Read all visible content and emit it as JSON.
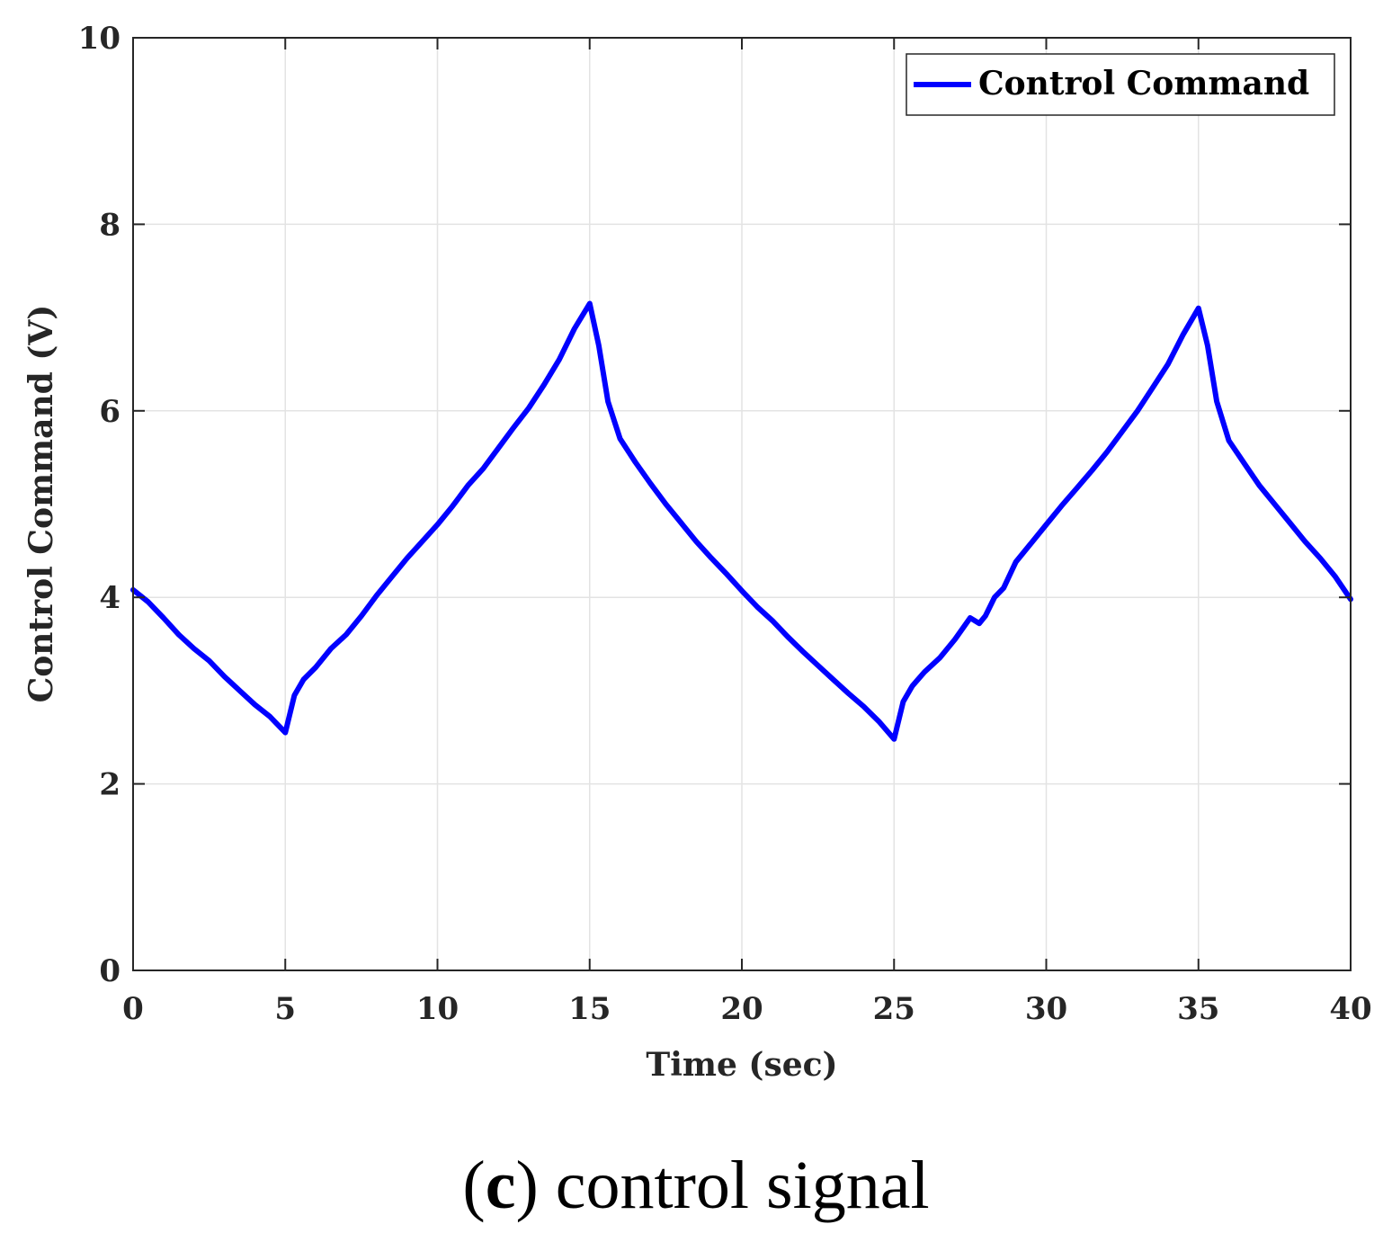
{
  "chart_data": {
    "type": "line",
    "xlabel": "Time (sec)",
    "ylabel": "Control Command (V)",
    "xlim": [
      0,
      40
    ],
    "ylim": [
      0,
      10
    ],
    "xticks": [
      "0",
      "5",
      "10",
      "15",
      "20",
      "25",
      "30",
      "35",
      "40"
    ],
    "yticks": [
      "0",
      "2",
      "4",
      "6",
      "8",
      "10"
    ],
    "grid": true,
    "legend_position": "top-right",
    "series": [
      {
        "name": "Control Command",
        "color": "#0000ff",
        "points": [
          [
            0,
            4.08
          ],
          [
            0.5,
            3.95
          ],
          [
            1,
            3.78
          ],
          [
            1.5,
            3.6
          ],
          [
            2,
            3.45
          ],
          [
            2.5,
            3.32
          ],
          [
            3,
            3.15
          ],
          [
            3.5,
            3.0
          ],
          [
            4,
            2.85
          ],
          [
            4.5,
            2.72
          ],
          [
            5,
            2.55
          ],
          [
            5.3,
            2.95
          ],
          [
            5.6,
            3.12
          ],
          [
            6,
            3.25
          ],
          [
            6.5,
            3.45
          ],
          [
            7,
            3.6
          ],
          [
            7.5,
            3.8
          ],
          [
            8,
            4.02
          ],
          [
            8.5,
            4.22
          ],
          [
            9,
            4.42
          ],
          [
            9.5,
            4.6
          ],
          [
            10,
            4.78
          ],
          [
            10.5,
            4.98
          ],
          [
            11,
            5.2
          ],
          [
            11.5,
            5.38
          ],
          [
            12,
            5.6
          ],
          [
            12.5,
            5.82
          ],
          [
            13,
            6.03
          ],
          [
            13.5,
            6.28
          ],
          [
            14,
            6.55
          ],
          [
            14.5,
            6.88
          ],
          [
            15,
            7.15
          ],
          [
            15.3,
            6.7
          ],
          [
            15.6,
            6.1
          ],
          [
            16,
            5.7
          ],
          [
            16.5,
            5.45
          ],
          [
            17,
            5.22
          ],
          [
            17.5,
            5.0
          ],
          [
            18,
            4.8
          ],
          [
            18.5,
            4.6
          ],
          [
            19,
            4.42
          ],
          [
            19.5,
            4.25
          ],
          [
            20,
            4.07
          ],
          [
            20.5,
            3.9
          ],
          [
            21,
            3.75
          ],
          [
            21.5,
            3.58
          ],
          [
            22,
            3.42
          ],
          [
            22.5,
            3.27
          ],
          [
            23,
            3.12
          ],
          [
            23.5,
            2.97
          ],
          [
            24,
            2.83
          ],
          [
            24.5,
            2.67
          ],
          [
            25,
            2.48
          ],
          [
            25.3,
            2.88
          ],
          [
            25.6,
            3.05
          ],
          [
            26,
            3.2
          ],
          [
            26.5,
            3.35
          ],
          [
            27,
            3.55
          ],
          [
            27.5,
            3.78
          ],
          [
            27.8,
            3.72
          ],
          [
            28,
            3.8
          ],
          [
            28.3,
            4.0
          ],
          [
            28.6,
            4.1
          ],
          [
            29,
            4.38
          ],
          [
            29.5,
            4.58
          ],
          [
            30,
            4.78
          ],
          [
            30.5,
            4.98
          ],
          [
            31,
            5.17
          ],
          [
            31.5,
            5.36
          ],
          [
            32,
            5.56
          ],
          [
            32.5,
            5.78
          ],
          [
            33,
            6.0
          ],
          [
            33.5,
            6.25
          ],
          [
            34,
            6.5
          ],
          [
            34.5,
            6.82
          ],
          [
            35,
            7.1
          ],
          [
            35.3,
            6.7
          ],
          [
            35.6,
            6.1
          ],
          [
            36,
            5.68
          ],
          [
            36.5,
            5.44
          ],
          [
            37,
            5.2
          ],
          [
            37.5,
            5.0
          ],
          [
            38,
            4.8
          ],
          [
            38.5,
            4.6
          ],
          [
            39,
            4.42
          ],
          [
            39.5,
            4.22
          ],
          [
            40,
            3.98
          ]
        ]
      }
    ]
  },
  "caption": {
    "open": "(",
    "letter": "c",
    "rest": ") control signal"
  }
}
